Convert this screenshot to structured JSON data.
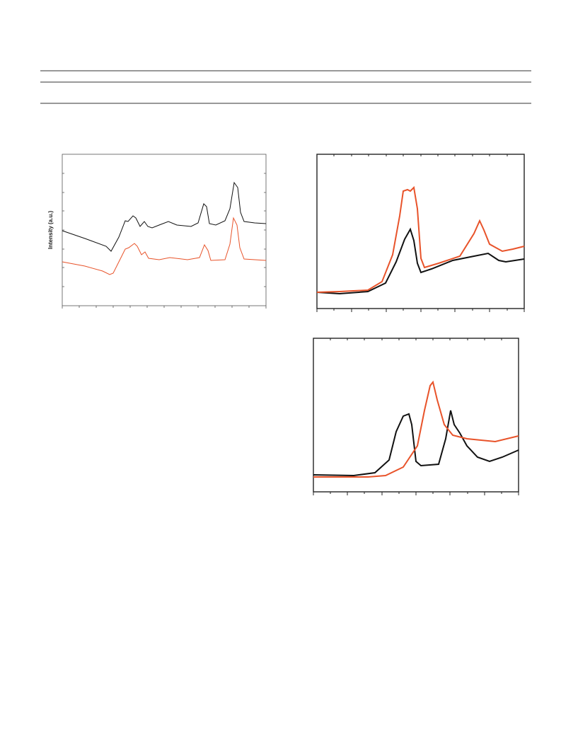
{
  "figure": {
    "panels": [
      {
        "y_label": "Intensity (a.u.)"
      }
    ]
  }
}
